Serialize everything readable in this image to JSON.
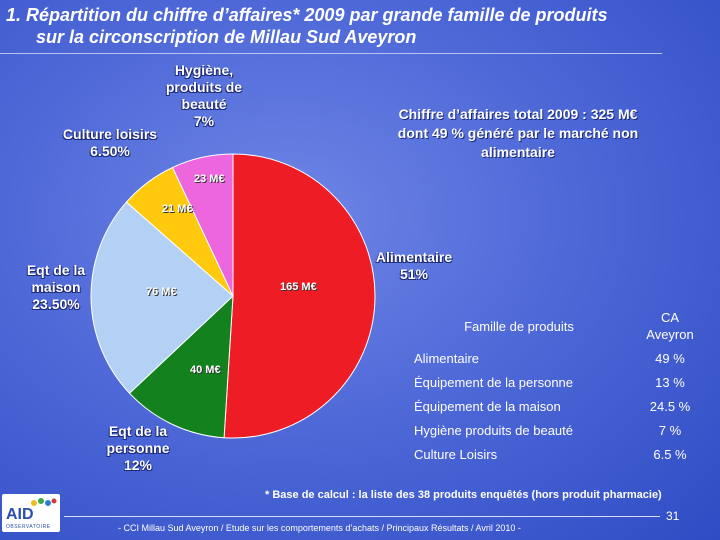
{
  "slide": {
    "title_line1": "1. Répartition du chiffre d’affaires* 2009 par grande famille de produits",
    "title_line2": "sur la circonscription de Millau Sud Aveyron",
    "total_line1": "Chiffre d’affaires total 2009 : 325 M€",
    "total_line2": "dont 49 % généré par le marché non",
    "total_line3": "alimentaire",
    "footnote": "* Base de calcul : la liste des 38 produits enquêtés (hors produit pharmacie)",
    "page_number": "31",
    "bottom_caption": "- CCI Millau Sud Aveyron / Etude sur les comportements d’achats / Principaux Résultats / Avril 2010 -",
    "logo_text": "AID",
    "logo_subtext": "OBSERVATOIRE"
  },
  "labels": {
    "alimentaire": [
      "Alimentaire",
      "51%"
    ],
    "personne": [
      "Eqt de la",
      "personne",
      "12%"
    ],
    "maison": [
      "Eqt de la",
      "maison",
      "23.50%"
    ],
    "loisirs": [
      "Culture loisirs",
      "6.50%"
    ],
    "hygiene": [
      "Hygiène,",
      "produits de",
      "beauté",
      "7%"
    ]
  },
  "chart_data": {
    "type": "pie",
    "title": "Répartition du chiffre d’affaires 2009 par grande famille de produits",
    "start": "top, clockwise",
    "slices": [
      {
        "name": "Alimentaire",
        "percent": 51,
        "value_label": "165 M€",
        "color": "#ee1c25"
      },
      {
        "name": "Eqt de la personne",
        "percent": 12,
        "value_label": "40 M€",
        "color": "#13821e"
      },
      {
        "name": "Eqt de la maison",
        "percent": 23.5,
        "value_label": "76 M€",
        "color": "#b3d0f5"
      },
      {
        "name": "Culture loisirs",
        "percent": 6.5,
        "value_label": "21 M€",
        "color": "#ffc90e"
      },
      {
        "name": "Hygiène, produits de beauté",
        "percent": 7,
        "value_label": "23 M€",
        "color": "#ee66dd"
      }
    ]
  },
  "table": {
    "header_col1": "Famille de produits",
    "header_col2_line1": "CA",
    "header_col2_line2": "Aveyron",
    "rows": [
      {
        "family": "Alimentaire",
        "value": "49 %"
      },
      {
        "family": "Équipement de la personne",
        "value": "13 %"
      },
      {
        "family": "Équipement de la maison",
        "value": "24.5 %"
      },
      {
        "family": "Hygiène produits de beauté",
        "value": "7 %"
      },
      {
        "family": "Culture Loisirs",
        "value": "6.5 %"
      }
    ]
  },
  "colors": {
    "background": "#4f69d8",
    "text": "#ffffff"
  }
}
